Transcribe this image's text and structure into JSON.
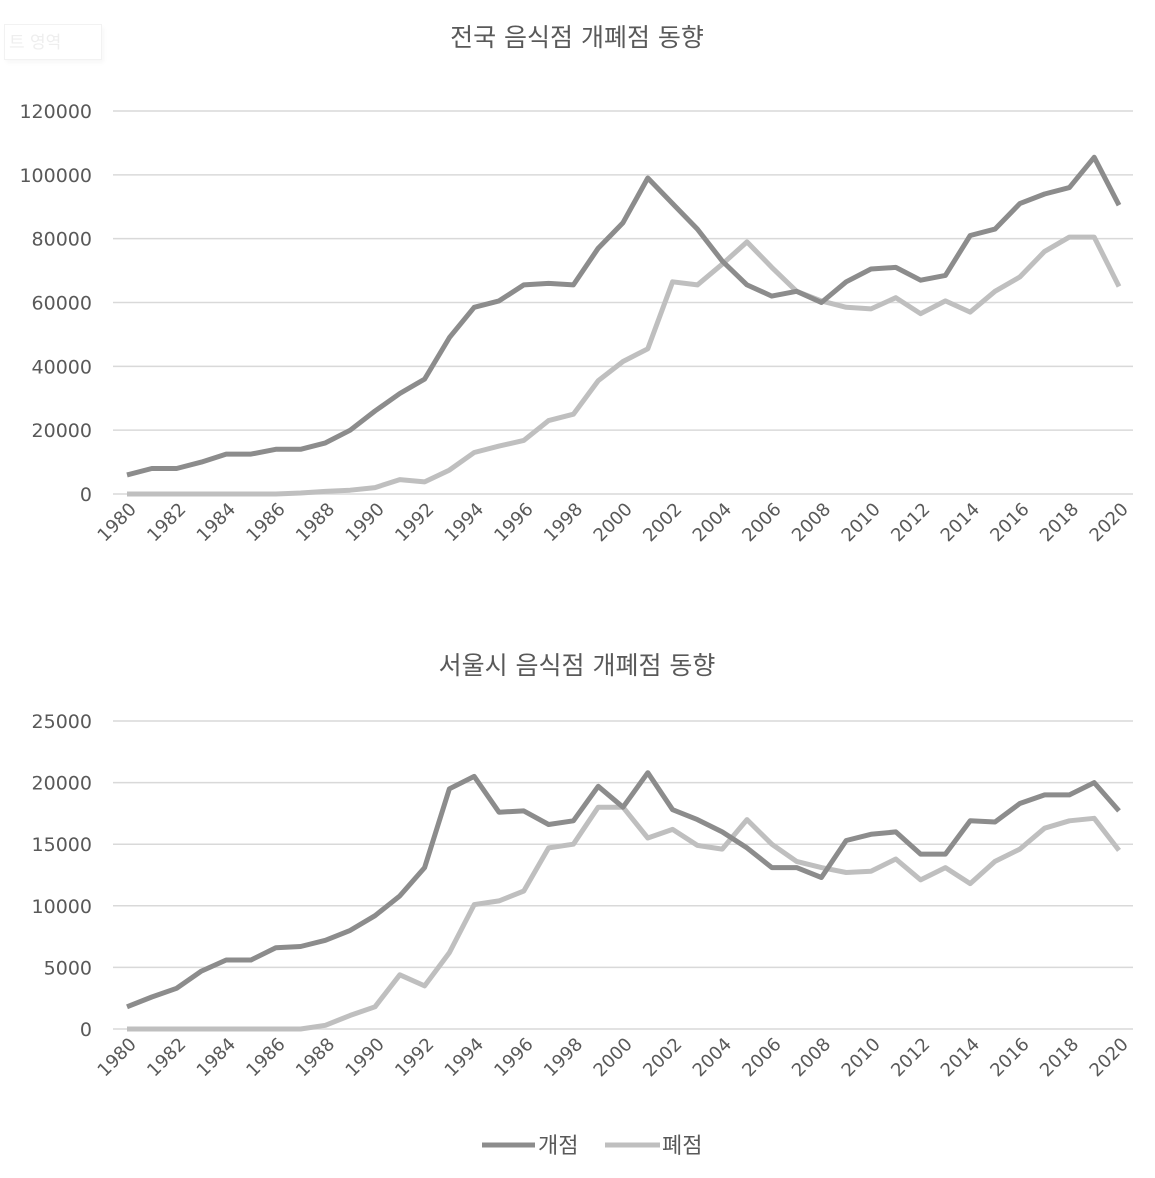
{
  "overlay_text": "트 영역",
  "legend": [
    {
      "label": "개점",
      "color": "#8c8c8c"
    },
    {
      "label": "폐점",
      "color": "#bfbfbf"
    }
  ],
  "chart_data": [
    {
      "type": "line",
      "title": "전국 음식점 개폐점 동향",
      "ylim": [
        0,
        120000
      ],
      "yticks": [
        0,
        20000,
        40000,
        60000,
        80000,
        100000,
        120000
      ],
      "grid": true,
      "legend_placement": "bottom",
      "x": [
        1980,
        1981,
        1982,
        1983,
        1984,
        1985,
        1986,
        1987,
        1988,
        1989,
        1990,
        1991,
        1992,
        1993,
        1994,
        1995,
        1996,
        1997,
        1998,
        1999,
        2000,
        2001,
        2002,
        2003,
        2004,
        2005,
        2006,
        2007,
        2008,
        2009,
        2010,
        2011,
        2012,
        2013,
        2014,
        2015,
        2016,
        2017,
        2018,
        2019,
        2020
      ],
      "xtick_labels": [
        "1980",
        "1982",
        "1984",
        "1986",
        "1988",
        "1990",
        "1992",
        "1994",
        "1996",
        "1998",
        "2000",
        "2002",
        "2004",
        "2006",
        "2008",
        "2010",
        "2012",
        "2014",
        "2016",
        "2018",
        "2020"
      ],
      "series": [
        {
          "name": "개점",
          "color": "#8c8c8c",
          "values": [
            6000,
            8000,
            8000,
            10000,
            12500,
            12500,
            14000,
            14000,
            16000,
            20000,
            26000,
            31500,
            36000,
            49000,
            58500,
            60500,
            65500,
            66000,
            65500,
            77000,
            85000,
            99000,
            91000,
            83000,
            73000,
            65500,
            62000,
            63500,
            60000,
            66500,
            70500,
            71000,
            67000,
            68500,
            81000,
            83000,
            91000,
            94000,
            96000,
            105500,
            90500
          ]
        },
        {
          "name": "폐점",
          "color": "#bfbfbf",
          "values": [
            0,
            0,
            0,
            0,
            0,
            0,
            0,
            300,
            800,
            1200,
            2000,
            4500,
            3800,
            7500,
            13000,
            15000,
            16800,
            23000,
            25000,
            35500,
            41500,
            45500,
            66500,
            65500,
            72000,
            79000,
            71000,
            63500,
            60500,
            58500,
            58000,
            61500,
            56500,
            60500,
            57000,
            63500,
            68000,
            76000,
            80500,
            80500,
            65000
          ]
        }
      ]
    },
    {
      "type": "line",
      "title": "서울시 음식점 개폐점 동향",
      "ylim": [
        0,
        25000
      ],
      "yticks": [
        0,
        5000,
        10000,
        15000,
        20000,
        25000
      ],
      "grid": true,
      "legend_placement": "bottom",
      "x": [
        1980,
        1981,
        1982,
        1983,
        1984,
        1985,
        1986,
        1987,
        1988,
        1989,
        1990,
        1991,
        1992,
        1993,
        1994,
        1995,
        1996,
        1997,
        1998,
        1999,
        2000,
        2001,
        2002,
        2003,
        2004,
        2005,
        2006,
        2007,
        2008,
        2009,
        2010,
        2011,
        2012,
        2013,
        2014,
        2015,
        2016,
        2017,
        2018,
        2019,
        2020
      ],
      "xtick_labels": [
        "1980",
        "1982",
        "1984",
        "1986",
        "1988",
        "1990",
        "1992",
        "1994",
        "1996",
        "1998",
        "2000",
        "2002",
        "2004",
        "2006",
        "2008",
        "2010",
        "2012",
        "2014",
        "2016",
        "2018",
        "2020"
      ],
      "series": [
        {
          "name": "개점",
          "color": "#8c8c8c",
          "values": [
            1800,
            2600,
            3300,
            4700,
            5600,
            5600,
            6600,
            6700,
            7200,
            8000,
            9200,
            10800,
            13100,
            19500,
            20500,
            17600,
            17700,
            16600,
            16900,
            19700,
            18000,
            20800,
            17800,
            17000,
            16000,
            14700,
            13100,
            13100,
            12300,
            15300,
            15800,
            16000,
            14200,
            14200,
            16900,
            16800,
            18300,
            19000,
            19000,
            20000,
            17700
          ]
        },
        {
          "name": "폐점",
          "color": "#bfbfbf",
          "values": [
            0,
            0,
            0,
            0,
            0,
            0,
            0,
            0,
            300,
            1100,
            1800,
            4400,
            3500,
            6200,
            10100,
            10400,
            11200,
            14700,
            15000,
            18000,
            18000,
            15500,
            16200,
            14900,
            14600,
            17000,
            15000,
            13600,
            13100,
            12700,
            12800,
            13800,
            12100,
            13100,
            11800,
            13600,
            14600,
            16300,
            16900,
            17100,
            14500
          ]
        }
      ]
    }
  ]
}
